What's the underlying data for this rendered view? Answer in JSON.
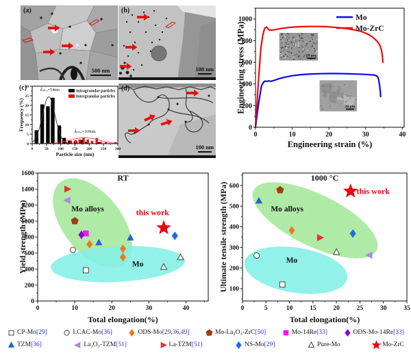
{
  "tem_panels": {
    "a": {
      "label": "(a)",
      "scale_bar": "500 nm"
    },
    "b": {
      "label": "(b)",
      "scale_bar": "100 nm"
    },
    "c": {
      "label": "(c)"
    },
    "d": {
      "label": "(d)",
      "scale_bar": "100 nm"
    }
  },
  "colors": {
    "mo_line": "#0909ee",
    "mo_zrc_line": "#ee0909",
    "reference_blue": "#2b2bee",
    "annotation_red": "#f00012",
    "mo_alloys_region": "#a6e99c",
    "mo_region": "#86efe6"
  },
  "series_styles": {
    "CP-Mo": {
      "marker": "square-open",
      "color": "#4a4a4a"
    },
    "LCAC-Mo": {
      "marker": "circle-open",
      "color": "#4a4a4a"
    },
    "ODS-Mo": {
      "marker": "diamond",
      "color": "#f0781e"
    },
    "Mo-La2O3-ZrC": {
      "marker": "pentagon",
      "color": "#a33b14"
    },
    "Mo-14Re": {
      "marker": "square",
      "color": "#fa14fa"
    },
    "ODS-Mo-14Re": {
      "marker": "diamond",
      "color": "#8a0ad2"
    },
    "TZM": {
      "marker": "triangle-up",
      "color": "#2763d2"
    },
    "La2O3-TZM": {
      "marker": "triangle-left",
      "color": "#b286de"
    },
    "La-TZM": {
      "marker": "triangle-right",
      "color": "#e63137"
    },
    "NS-Mo": {
      "marker": "diamond",
      "color": "#1f6be6"
    },
    "Pure-Mo": {
      "marker": "triangle-up-open",
      "color": "#4a4a4a"
    },
    "Mo-ZrC": {
      "marker": "star",
      "color": "#f00012"
    }
  },
  "chart_data": [
    {
      "id": "chart-hist",
      "type": "bar",
      "panel_label": "(c)",
      "xlabel": "Particle size (nm)",
      "ylabel": "Frequency (%)",
      "xlim": [
        0,
        300
      ],
      "ylim": [
        0,
        30
      ],
      "xticks": [
        0,
        50,
        100,
        150,
        200,
        250,
        300
      ],
      "yticks": [
        0,
        5,
        10,
        15,
        20,
        25,
        30
      ],
      "x_minor": 25,
      "y_minor": 2.5,
      "legend_position": "top-right",
      "series": [
        {
          "name": "Intragranular particles",
          "color": "#000000",
          "bar_width_nm": 13,
          "x": [
            15,
            35,
            55,
            72,
            95,
            112,
            132,
            152,
            172,
            192,
            232
          ],
          "values": [
            7,
            20.5,
            19.5,
            24,
            9.5,
            3,
            1.5,
            1.2,
            2,
            1,
            0.8
          ]
        },
        {
          "name": "Intergranular particles",
          "color": "#e81010",
          "bar_width_nm": 8,
          "x": [
            120,
            136,
            152,
            166,
            180,
            195,
            210,
            226,
            240,
            258,
            292
          ],
          "values": [
            0.8,
            1.2,
            1.8,
            2.2,
            3.2,
            2.2,
            1.5,
            3,
            1,
            0.7,
            0.8
          ]
        }
      ],
      "fits": [
        {
          "color": "#333333",
          "amp": 24.5,
          "mu": 58,
          "sigma": 22
        },
        {
          "color": "#e84040",
          "amp": 3.1,
          "mu": 183,
          "sigma": 50
        }
      ],
      "annotations": [
        {
          "text": "d̄ᵢₙₜᵣₐ=54nm",
          "x": 62,
          "y": 27.5
        },
        {
          "text": "d̄ᵢₙₜₑᵣ=169nm",
          "x": 185,
          "y": 5.8
        }
      ]
    },
    {
      "id": "chart-ss",
      "type": "line",
      "xlabel": "Engineering strain (%)",
      "ylabel": "Engineering stress (MPa)",
      "xlim": [
        0,
        40.5
      ],
      "ylim": [
        0,
        1100
      ],
      "xticks": [
        0,
        10,
        20,
        30,
        40
      ],
      "yticks": [
        0,
        200,
        400,
        600,
        800,
        1000
      ],
      "x_minor": 5,
      "y_minor": 100,
      "legend_position": "top-right",
      "series": [
        {
          "name": "Mo",
          "color": "#0909ee",
          "points": [
            [
              0,
              0
            ],
            [
              0.8,
              210
            ],
            [
              1.6,
              380
            ],
            [
              2.2,
              418
            ],
            [
              2.6,
              426
            ],
            [
              3,
              424
            ],
            [
              3.6,
              428
            ],
            [
              4.2,
              425
            ],
            [
              5,
              432
            ],
            [
              6.5,
              450
            ],
            [
              8,
              463
            ],
            [
              10,
              476
            ],
            [
              12,
              484
            ],
            [
              14,
              490
            ],
            [
              16,
              493
            ],
            [
              18,
              495
            ],
            [
              20,
              496
            ],
            [
              22,
              496
            ],
            [
              24,
              495
            ],
            [
              26,
              493
            ],
            [
              28,
              491
            ],
            [
              30,
              488
            ],
            [
              31.5,
              485
            ],
            [
              32.5,
              481
            ],
            [
              33.1,
              473
            ],
            [
              33.5,
              450
            ],
            [
              33.8,
              390
            ],
            [
              34,
              330
            ],
            [
              34.1,
              283
            ]
          ]
        },
        {
          "name": "Mo-ZrC",
          "color": "#ee0909",
          "points": [
            [
              0,
              0
            ],
            [
              0.8,
              430
            ],
            [
              1.5,
              740
            ],
            [
              2,
              850
            ],
            [
              2.4,
              905
            ],
            [
              2.7,
              922
            ],
            [
              3,
              926
            ],
            [
              3.3,
              912
            ],
            [
              3.8,
              898
            ],
            [
              4.5,
              897
            ],
            [
              5.5,
              903
            ],
            [
              7,
              913
            ],
            [
              9,
              922
            ],
            [
              11,
              927
            ],
            [
              13,
              930
            ],
            [
              15,
              931
            ],
            [
              17,
              931
            ],
            [
              19,
              929
            ],
            [
              21,
              925
            ],
            [
              23,
              919
            ],
            [
              25,
              911
            ],
            [
              27,
              899
            ],
            [
              28.5,
              888
            ],
            [
              30,
              870
            ],
            [
              31,
              853
            ],
            [
              32,
              830
            ],
            [
              33,
              800
            ],
            [
              33.8,
              765
            ],
            [
              34.3,
              715
            ],
            [
              34.6,
              655
            ],
            [
              34.7,
              600
            ]
          ]
        }
      ],
      "insets": [
        {
          "scale_bar": "20 μm"
        },
        {
          "scale_bar": "20 μm"
        }
      ]
    },
    {
      "id": "chart-rt",
      "type": "scatter",
      "title": "RT",
      "xlabel": "Total elongation(%)",
      "ylabel": "Yield strength (MPa)",
      "xlim": [
        0,
        46
      ],
      "ylim": [
        0,
        1600
      ],
      "xticks": [
        0,
        10,
        20,
        30,
        40
      ],
      "yticks": [
        0,
        200,
        400,
        600,
        800,
        1000,
        1200,
        1400,
        1600
      ],
      "x_minor": 5,
      "y_minor": 100,
      "regions": [
        {
          "label": "Mo alloys",
          "label_x": 13.5,
          "label_y": 1120
        },
        {
          "label": "Mo",
          "label_x": 27,
          "label_y": 430
        }
      ],
      "annotation": {
        "text": "this work",
        "x": 31,
        "y": 1075
      },
      "points": [
        {
          "series": "CP-Mo",
          "x": 13,
          "y": 385
        },
        {
          "series": "LCAC-Mo",
          "x": 9.5,
          "y": 640
        },
        {
          "series": "ODS-Mo",
          "x": 14,
          "y": 710
        },
        {
          "series": "ODS-Mo",
          "x": 23,
          "y": 655
        },
        {
          "series": "ODS-Mo",
          "x": 23,
          "y": 548
        },
        {
          "series": "Mo-La2O3-ZrC",
          "x": 10,
          "y": 1000
        },
        {
          "series": "Mo-14Re",
          "x": 13,
          "y": 845
        },
        {
          "series": "ODS-Mo-14Re",
          "x": 11.8,
          "y": 828
        },
        {
          "series": "TZM",
          "x": 16.5,
          "y": 730
        },
        {
          "series": "TZM",
          "x": 25,
          "y": 790
        },
        {
          "series": "La2O3-TZM",
          "x": 8,
          "y": 1260
        },
        {
          "series": "La-TZM",
          "x": 8,
          "y": 1400
        },
        {
          "series": "NS-Mo",
          "x": 37,
          "y": 815
        },
        {
          "series": "Pure-Mo",
          "x": 34,
          "y": 425
        },
        {
          "series": "Pure-Mo",
          "x": 38.5,
          "y": 545
        },
        {
          "series": "Mo-ZrC",
          "x": 34,
          "y": 915
        }
      ]
    },
    {
      "id": "chart-uts",
      "type": "scatter",
      "title": "1000 °C",
      "xlabel": "Total elongation(%)",
      "ylabel": "Ultimate tensile strength (MPa)",
      "xlim": [
        0,
        35
      ],
      "ylim": [
        40,
        660
      ],
      "xticks": [
        0,
        5,
        10,
        15,
        20,
        25,
        30,
        35
      ],
      "yticks": [
        100,
        200,
        300,
        400,
        500,
        600
      ],
      "x_minor": 2.5,
      "y_minor": 50,
      "regions": [
        {
          "label": "Mo alloys",
          "label_x": 9.5,
          "label_y": 475
        },
        {
          "label": "Mo",
          "label_x": 10.5,
          "label_y": 225
        }
      ],
      "annotation": {
        "text": "this work",
        "x": 24.3,
        "y": 572,
        "star_x": 23,
        "star_y": 572
      },
      "points": [
        {
          "series": "TZM",
          "x": 3.5,
          "y": 525
        },
        {
          "series": "Mo-La2O3-ZrC",
          "x": 8,
          "y": 578
        },
        {
          "series": "ODS-Mo",
          "x": 10.5,
          "y": 382
        },
        {
          "series": "La-TZM",
          "x": 16.5,
          "y": 347
        },
        {
          "series": "NS-Mo",
          "x": 23.5,
          "y": 367
        },
        {
          "series": "La2O3-TZM",
          "x": 27,
          "y": 262
        },
        {
          "series": "LCAC-Mo",
          "x": 3,
          "y": 260
        },
        {
          "series": "Pure-Mo",
          "x": 20,
          "y": 277
        },
        {
          "series": "CP-Mo",
          "x": 8.5,
          "y": 120
        }
      ]
    }
  ],
  "legend": {
    "rows": [
      [
        {
          "marker": "CP-Mo",
          "name": "CP-Mo",
          "ref": "[29]"
        },
        {
          "marker": "LCAC-Mo",
          "name": "LCAC-Mo",
          "ref": "[36]"
        },
        {
          "marker": "ODS-Mo",
          "name": "ODS-Mo",
          "ref": "[29,36,49]"
        },
        {
          "marker": "Mo-La2O3-ZrC",
          "name": "Mo-La₂O₃-ZrC",
          "ref": "[50]"
        },
        {
          "marker": "Mo-14Re",
          "name": "Mo-14Re",
          "ref": "[33]"
        },
        {
          "marker": "ODS-Mo-14Re",
          "name": "ODS-Mo-14Re",
          "ref": "[33]"
        }
      ],
      [
        {
          "marker": "TZM",
          "name": "TZM",
          "ref": "[36]"
        },
        {
          "marker": "La2O3-TZM",
          "name": "La₂O₃-TZM",
          "ref": "[51]"
        },
        {
          "marker": "La-TZM",
          "name": "La-TZM",
          "ref": "[51]"
        },
        {
          "marker": "NS-Mo",
          "name": "NS-Mo",
          "ref": "[29]"
        },
        {
          "marker": "Pure-Mo",
          "name": "Pure-Mo",
          "ref": ""
        },
        {
          "marker": "Mo-ZrC",
          "name": "Mo-ZrC",
          "ref": ""
        }
      ]
    ]
  }
}
